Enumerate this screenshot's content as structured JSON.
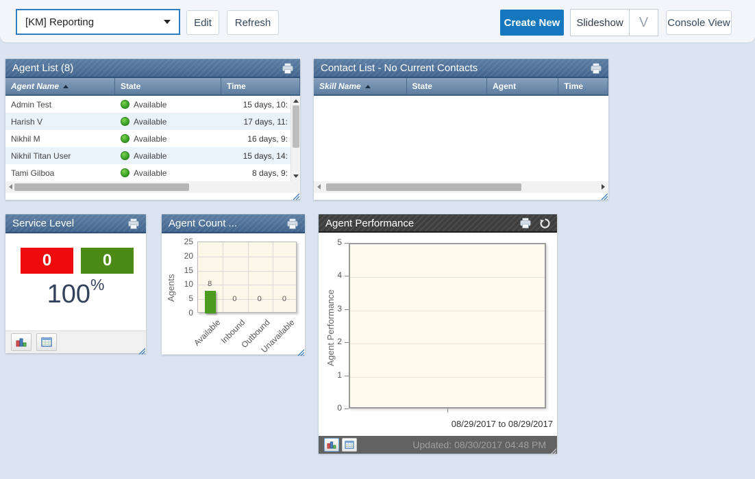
{
  "toolbar": {
    "view_selector_value": "[KM] Reporting",
    "edit_label": "Edit",
    "refresh_label": "Refresh",
    "create_new_label": "Create New",
    "slideshow_label": "Slideshow",
    "slideshow_arrow": "V",
    "console_view_label": "Console View"
  },
  "panels": {
    "agent_list": {
      "title": "Agent List (8)",
      "columns": [
        {
          "label": "Agent Name",
          "sorted": true
        },
        {
          "label": "State",
          "sorted": false
        },
        {
          "label": "Time",
          "sorted": false
        }
      ],
      "rows": [
        {
          "name": "Admin Test",
          "state": "Available",
          "time": "15 days, 10:"
        },
        {
          "name": "Harish V",
          "state": "Available",
          "time": "17 days, 11:"
        },
        {
          "name": "Nikhil M",
          "state": "Available",
          "time": "16 days, 9:"
        },
        {
          "name": "Nikhil Titan User",
          "state": "Available",
          "time": "15 days, 14:"
        },
        {
          "name": "Tami Gilboa",
          "state": "Available",
          "time": "8 days, 9:"
        }
      ]
    },
    "contact_list": {
      "title": "Contact List - No Current Contacts",
      "columns": [
        {
          "label": "Skill Name",
          "sorted": true
        },
        {
          "label": "State",
          "sorted": false
        },
        {
          "label": "Agent",
          "sorted": false
        },
        {
          "label": "Time",
          "sorted": false
        }
      ],
      "rows": []
    },
    "service_level": {
      "title": "Service Level",
      "red_value": "0",
      "green_value": "0",
      "percent_value": "100",
      "percent_sign": "%"
    },
    "agent_count": {
      "title": "Agent Count ..."
    },
    "agent_performance": {
      "title": "Agent Performance",
      "date_range": "08/29/2017  to  08/29/2017",
      "updated": "Updated: 08/30/2017 04:48 PM"
    }
  },
  "chart_data": [
    {
      "id": "agent_count",
      "type": "bar",
      "title": "Agent Count ...",
      "categories": [
        "Available",
        "Inbound",
        "Outbound",
        "Unavailable"
      ],
      "values": [
        8,
        0,
        0,
        0
      ],
      "xlabel": "",
      "ylabel": "Agents",
      "ylim": [
        0,
        25
      ],
      "yticks": [
        0,
        5,
        10,
        15,
        20,
        25
      ],
      "grid": true,
      "legend": "none",
      "bar_color": "#4a9b1e"
    },
    {
      "id": "agent_performance",
      "type": "bar",
      "title": "Agent Performance",
      "categories": [],
      "values": [],
      "xlabel": "",
      "ylabel": "Agent Performance",
      "ylim": [
        0,
        5
      ],
      "yticks": [
        0,
        1,
        2,
        3,
        4,
        5
      ],
      "grid": true,
      "legend": "none",
      "annotations": [
        "08/29/2017  to  08/29/2017",
        "Updated: 08/30/2017 04:48 PM"
      ]
    }
  ],
  "status": {
    "available_label": "Available",
    "available_color": "#3aa227"
  },
  "colors": {
    "accent_blue": "#1577bd",
    "panel_header_blue": "#42658f",
    "panel_header_dark": "#3e3e3e",
    "service_red": "#ee0b0c",
    "service_green": "#4a8a15",
    "bar_green": "#4a9b1e",
    "page_background": "#dbe4f0"
  },
  "icons": {
    "print": "printer-icon",
    "refresh": "refresh-icon",
    "chart_view": "bar-chart-icon",
    "table_view": "table-grid-icon",
    "dropdown_caret": "chevron-down-icon",
    "resize": "resize-grip"
  }
}
